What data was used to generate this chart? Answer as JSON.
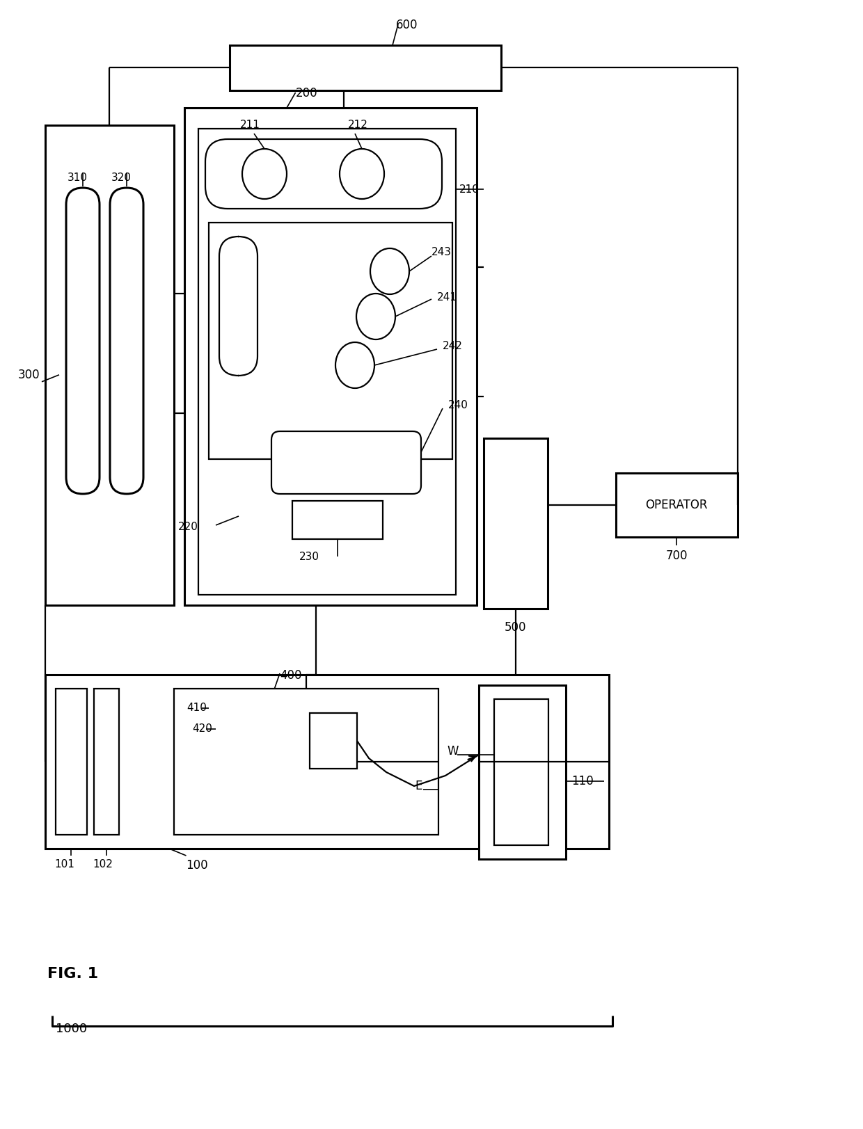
{
  "bg_color": "#ffffff",
  "lc": "#000000",
  "labels": {
    "fig": "FIG. 1",
    "1000": "1000",
    "600": "600",
    "500": "500",
    "700": "700",
    "operator": "OPERATOR",
    "300": "300",
    "310": "310",
    "320": "320",
    "200": "200",
    "210": "210",
    "211": "211",
    "212": "212",
    "220": "220",
    "230": "230",
    "240": "240",
    "241": "241",
    "242": "242",
    "243": "243",
    "100": "100",
    "101": "101",
    "102": "102",
    "110": "110",
    "400": "400",
    "410": "410",
    "420": "420",
    "E": "E",
    "W": "W"
  }
}
